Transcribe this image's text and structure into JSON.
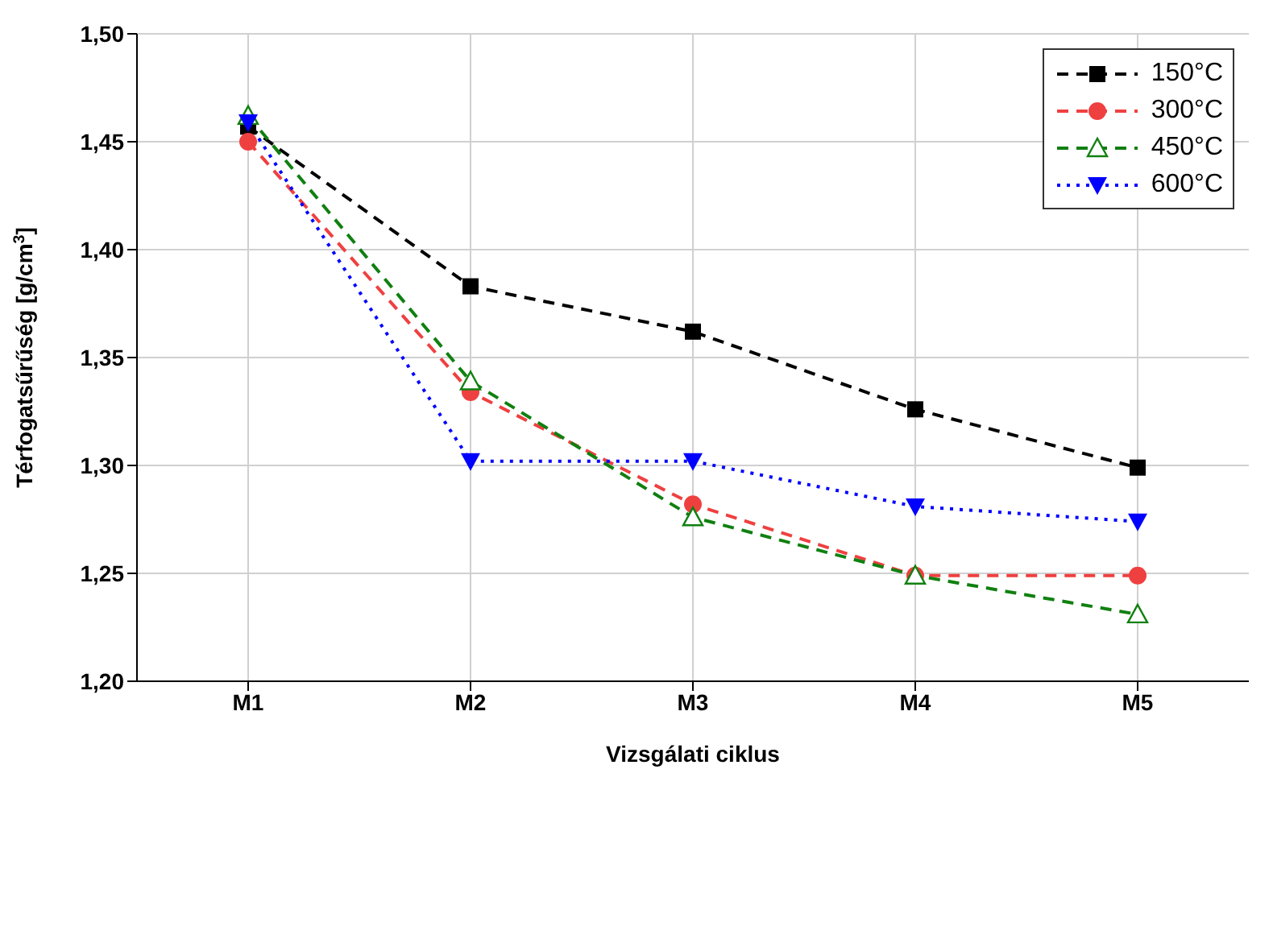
{
  "chart_data": {
    "type": "line",
    "xlabel": "Vizsgálati ciklus",
    "ylabel": "Térfogatsűrűség [g/cm$^{3}$]",
    "categories": [
      "M1",
      "M2",
      "M3",
      "M4",
      "M5"
    ],
    "series": [
      {
        "name": "150°C",
        "color": "#000000",
        "values": [
          1.457,
          1.383,
          1.362,
          1.326,
          1.299
        ],
        "marker": "square",
        "line_style": "dashed"
      },
      {
        "name": "300°C",
        "color": "#ef4040",
        "values": [
          1.45,
          1.334,
          1.282,
          1.249,
          1.249
        ],
        "marker": "circle",
        "line_style": "dashed"
      },
      {
        "name": "450°C",
        "color": "#108010",
        "values": [
          1.462,
          1.339,
          1.276,
          1.249,
          1.231
        ],
        "marker": "triangle",
        "line_style": "dashed"
      },
      {
        "name": "600°C",
        "color": "#0000ff",
        "values": [
          1.459,
          1.302,
          1.302,
          1.281,
          1.274
        ],
        "marker": "triangle-down",
        "line_style": "dotted"
      }
    ],
    "ylim": [
      1.2,
      1.5
    ],
    "yticks": [
      {
        "value": 1.2,
        "label": "1,20"
      },
      {
        "value": 1.25,
        "label": "1,25"
      },
      {
        "value": 1.3,
        "label": "1,30"
      },
      {
        "value": 1.35,
        "label": "1,35"
      },
      {
        "value": 1.4,
        "label": "1,40"
      },
      {
        "value": 1.45,
        "label": "1,45"
      },
      {
        "value": 1.5,
        "label": "1,50"
      }
    ],
    "grid": true,
    "legend": "top right"
  }
}
